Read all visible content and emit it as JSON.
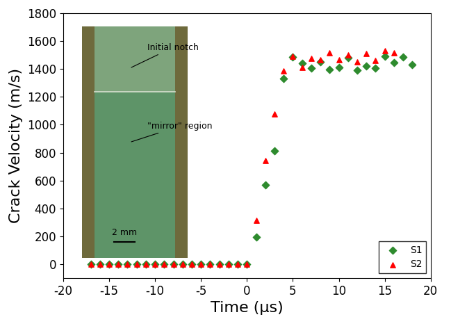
{
  "chart_data": {
    "type": "scatter",
    "x_label": "Time (μs)",
    "y_label": "Crack Velocity (m/s)",
    "xlim": [
      -20,
      20
    ],
    "xticks": [
      -20,
      -15,
      -10,
      -5,
      0,
      5,
      10,
      15,
      20
    ],
    "ylim": [
      -100,
      1800
    ],
    "yticks": [
      0,
      200,
      400,
      600,
      800,
      1000,
      1200,
      1400,
      1600,
      1800
    ],
    "legend": "lower right",
    "grid": false,
    "annotations": [
      "Initial notch",
      "\"mirror\" region",
      "2 mm"
    ],
    "series": [
      {
        "name": "S1",
        "color": "#2e8b2e",
        "marker": "diamond",
        "x": [
          -17,
          -16,
          -15,
          -14,
          -13,
          -12,
          -11,
          -10,
          -9,
          -8,
          -7,
          -6,
          -5,
          -4,
          -3,
          -2,
          -1,
          0,
          1,
          2,
          3,
          4,
          5,
          6,
          7,
          8,
          9,
          10,
          11,
          12,
          13,
          14,
          15,
          16,
          17,
          18
        ],
        "values": [
          0,
          0,
          0,
          0,
          0,
          0,
          0,
          0,
          0,
          0,
          0,
          0,
          0,
          0,
          0,
          0,
          0,
          0,
          195,
          570,
          815,
          1330,
          1485,
          1440,
          1405,
          1450,
          1395,
          1410,
          1480,
          1390,
          1420,
          1405,
          1490,
          1445,
          1485,
          1430
        ]
      },
      {
        "name": "S2",
        "color": "#ff0000",
        "marker": "triangle",
        "x": [
          -17,
          -16,
          -15,
          -14,
          -13,
          -12,
          -11,
          -10,
          -9,
          -8,
          -7,
          -6,
          -5,
          -4,
          -3,
          -2,
          -1,
          0,
          1,
          2,
          3,
          4,
          5,
          6,
          7,
          8,
          9,
          10,
          11,
          12,
          13,
          14,
          15,
          16
        ],
        "values": [
          0,
          0,
          0,
          0,
          0,
          0,
          0,
          0,
          0,
          0,
          0,
          0,
          0,
          0,
          0,
          0,
          0,
          0,
          315,
          745,
          1075,
          1385,
          1490,
          1410,
          1475,
          1465,
          1515,
          1465,
          1500,
          1450,
          1510,
          1460,
          1530,
          1515
        ]
      }
    ]
  }
}
